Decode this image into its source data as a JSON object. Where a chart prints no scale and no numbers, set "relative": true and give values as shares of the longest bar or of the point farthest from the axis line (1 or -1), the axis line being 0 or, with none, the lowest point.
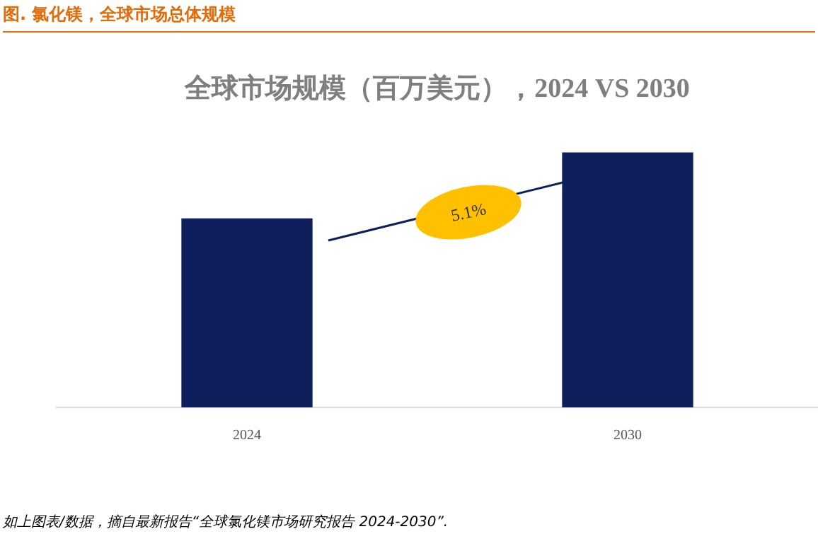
{
  "chart_data": {
    "type": "bar",
    "title": "全球市场规模（百万美元），2024 VS 2030",
    "categories": [
      "2024",
      "2030"
    ],
    "values": [
      0.74,
      1
    ],
    "color": "#0e1f5b",
    "relative": true,
    "grid": false,
    "legend": false,
    "annotations": [
      "图.  氯化镁，全球市场总体规模",
      "5.1%",
      "如上图表/数据，摘自最新报告“全球氯化镁市场研究报告 2024-2030”."
    ]
  }
}
